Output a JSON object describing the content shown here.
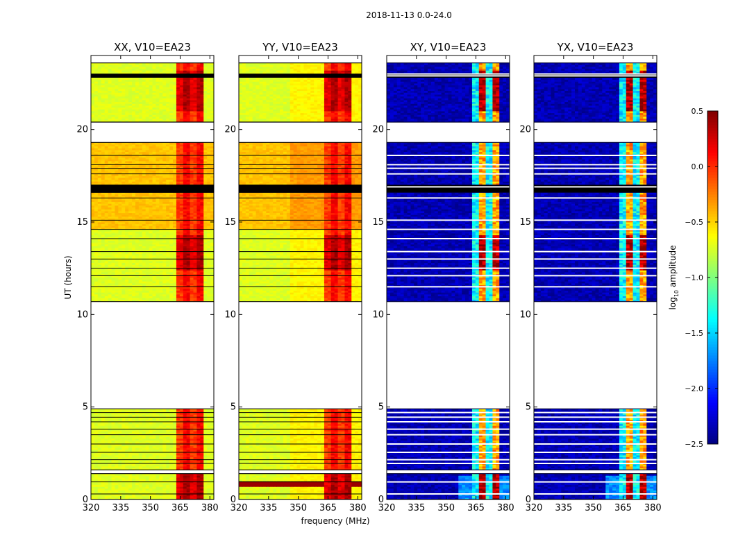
{
  "chart_data": {
    "type": "heatmap",
    "suptitle": "2018-11-13 0.0-24.0",
    "xlabel": "frequency (MHz)",
    "ylabel": "UT (hours)",
    "xlim": [
      320,
      382
    ],
    "ylim": [
      0,
      24
    ],
    "xticks": [
      320,
      335,
      350,
      365,
      380
    ],
    "yticks": [
      0,
      5,
      10,
      15,
      20
    ],
    "xtick_labels": [
      "320",
      "335",
      "350",
      "365",
      "380"
    ],
    "ytick_labels": [
      "0",
      "5",
      "10",
      "15",
      "20"
    ],
    "time_blocks": [
      [
        0.0,
        1.4
      ],
      [
        1.6,
        4.9
      ],
      [
        10.7,
        16.6
      ],
      [
        17.0,
        19.3
      ],
      [
        20.4,
        23.6
      ]
    ],
    "band_edge_mhz": 363,
    "band_end_mhz": 377.5,
    "black_flag_rows_hours": [
      0.3,
      0.95,
      1.95,
      2.15,
      2.55,
      3.0,
      3.5,
      3.8,
      4.2,
      4.45,
      4.7,
      11.5,
      12.1,
      12.5,
      13.0,
      13.4,
      14.1,
      14.6,
      15.1,
      16.3,
      16.9,
      17.6,
      17.9,
      18.1,
      18.6,
      23.0,
      22.9
    ],
    "panels": [
      {
        "title": "XX, V10=EA23",
        "pol": "XX",
        "kind": "auto"
      },
      {
        "title": "YY, V10=EA23",
        "pol": "YY",
        "kind": "auto"
      },
      {
        "title": "XY, V10=EA23",
        "pol": "XY",
        "kind": "cross"
      },
      {
        "title": "YX, V10=EA23",
        "pol": "YX",
        "kind": "cross"
      }
    ],
    "colorbar": {
      "label": "log10 amplitude",
      "label_main": "log",
      "label_sub": "10",
      "label_rest": " amplitude",
      "vmin": -2.5,
      "vmax": 0.5,
      "ticks": [
        0.5,
        0.0,
        -0.5,
        -1.0,
        -1.5,
        -2.0,
        -2.5
      ],
      "tick_labels": [
        "0.5",
        "0.0",
        "−0.5",
        "−1.0",
        "−1.5",
        "−2.0",
        "−2.5"
      ],
      "colormap": "jet"
    }
  }
}
